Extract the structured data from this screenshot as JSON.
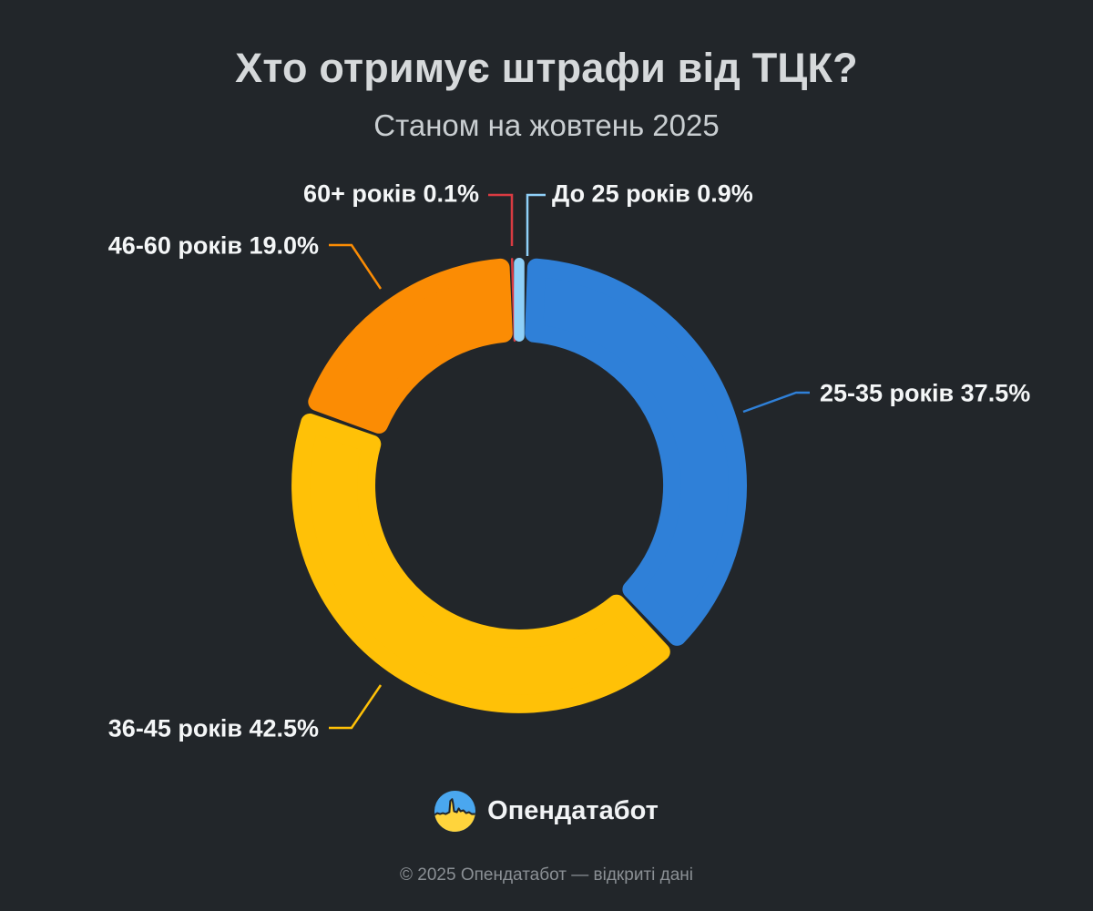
{
  "header": {
    "title": "Хто отримує штрафи від ТЦК?",
    "subtitle": "Станом на жовтень 2025"
  },
  "chart_data": {
    "type": "pie",
    "subtype": "donut",
    "title": "Хто отримує штрафи від ТЦК?",
    "subtitle": "Станом на жовтень 2025",
    "unit": "%",
    "label_format": "{label} {value}%",
    "legend_position": "callout-labels",
    "segments": [
      {
        "label": "До 25 років",
        "value": 0.9,
        "color": "#8FD0F8"
      },
      {
        "label": "25-35 років",
        "value": 37.5,
        "color": "#2F80D8"
      },
      {
        "label": "36-45 років",
        "value": 42.5,
        "color": "#FFC107"
      },
      {
        "label": "46-60 років",
        "value": 19.0,
        "color": "#FB8C04"
      },
      {
        "label": "60+ років",
        "value": 0.1,
        "color": "#D93B42"
      }
    ]
  },
  "branding": {
    "logo_text": "Опендатабот",
    "flag_top_color": "#4AA7EF",
    "flag_bottom_color": "#FFD43C"
  },
  "footer": {
    "copyright": "© 2025 Опендатабот — відкриті дані"
  },
  "colors": {
    "background": "#22262A",
    "title": "#D6D9DB",
    "subtitle": "#C9CED1",
    "label": "#F4F6F7",
    "footer": "#8B9095"
  }
}
